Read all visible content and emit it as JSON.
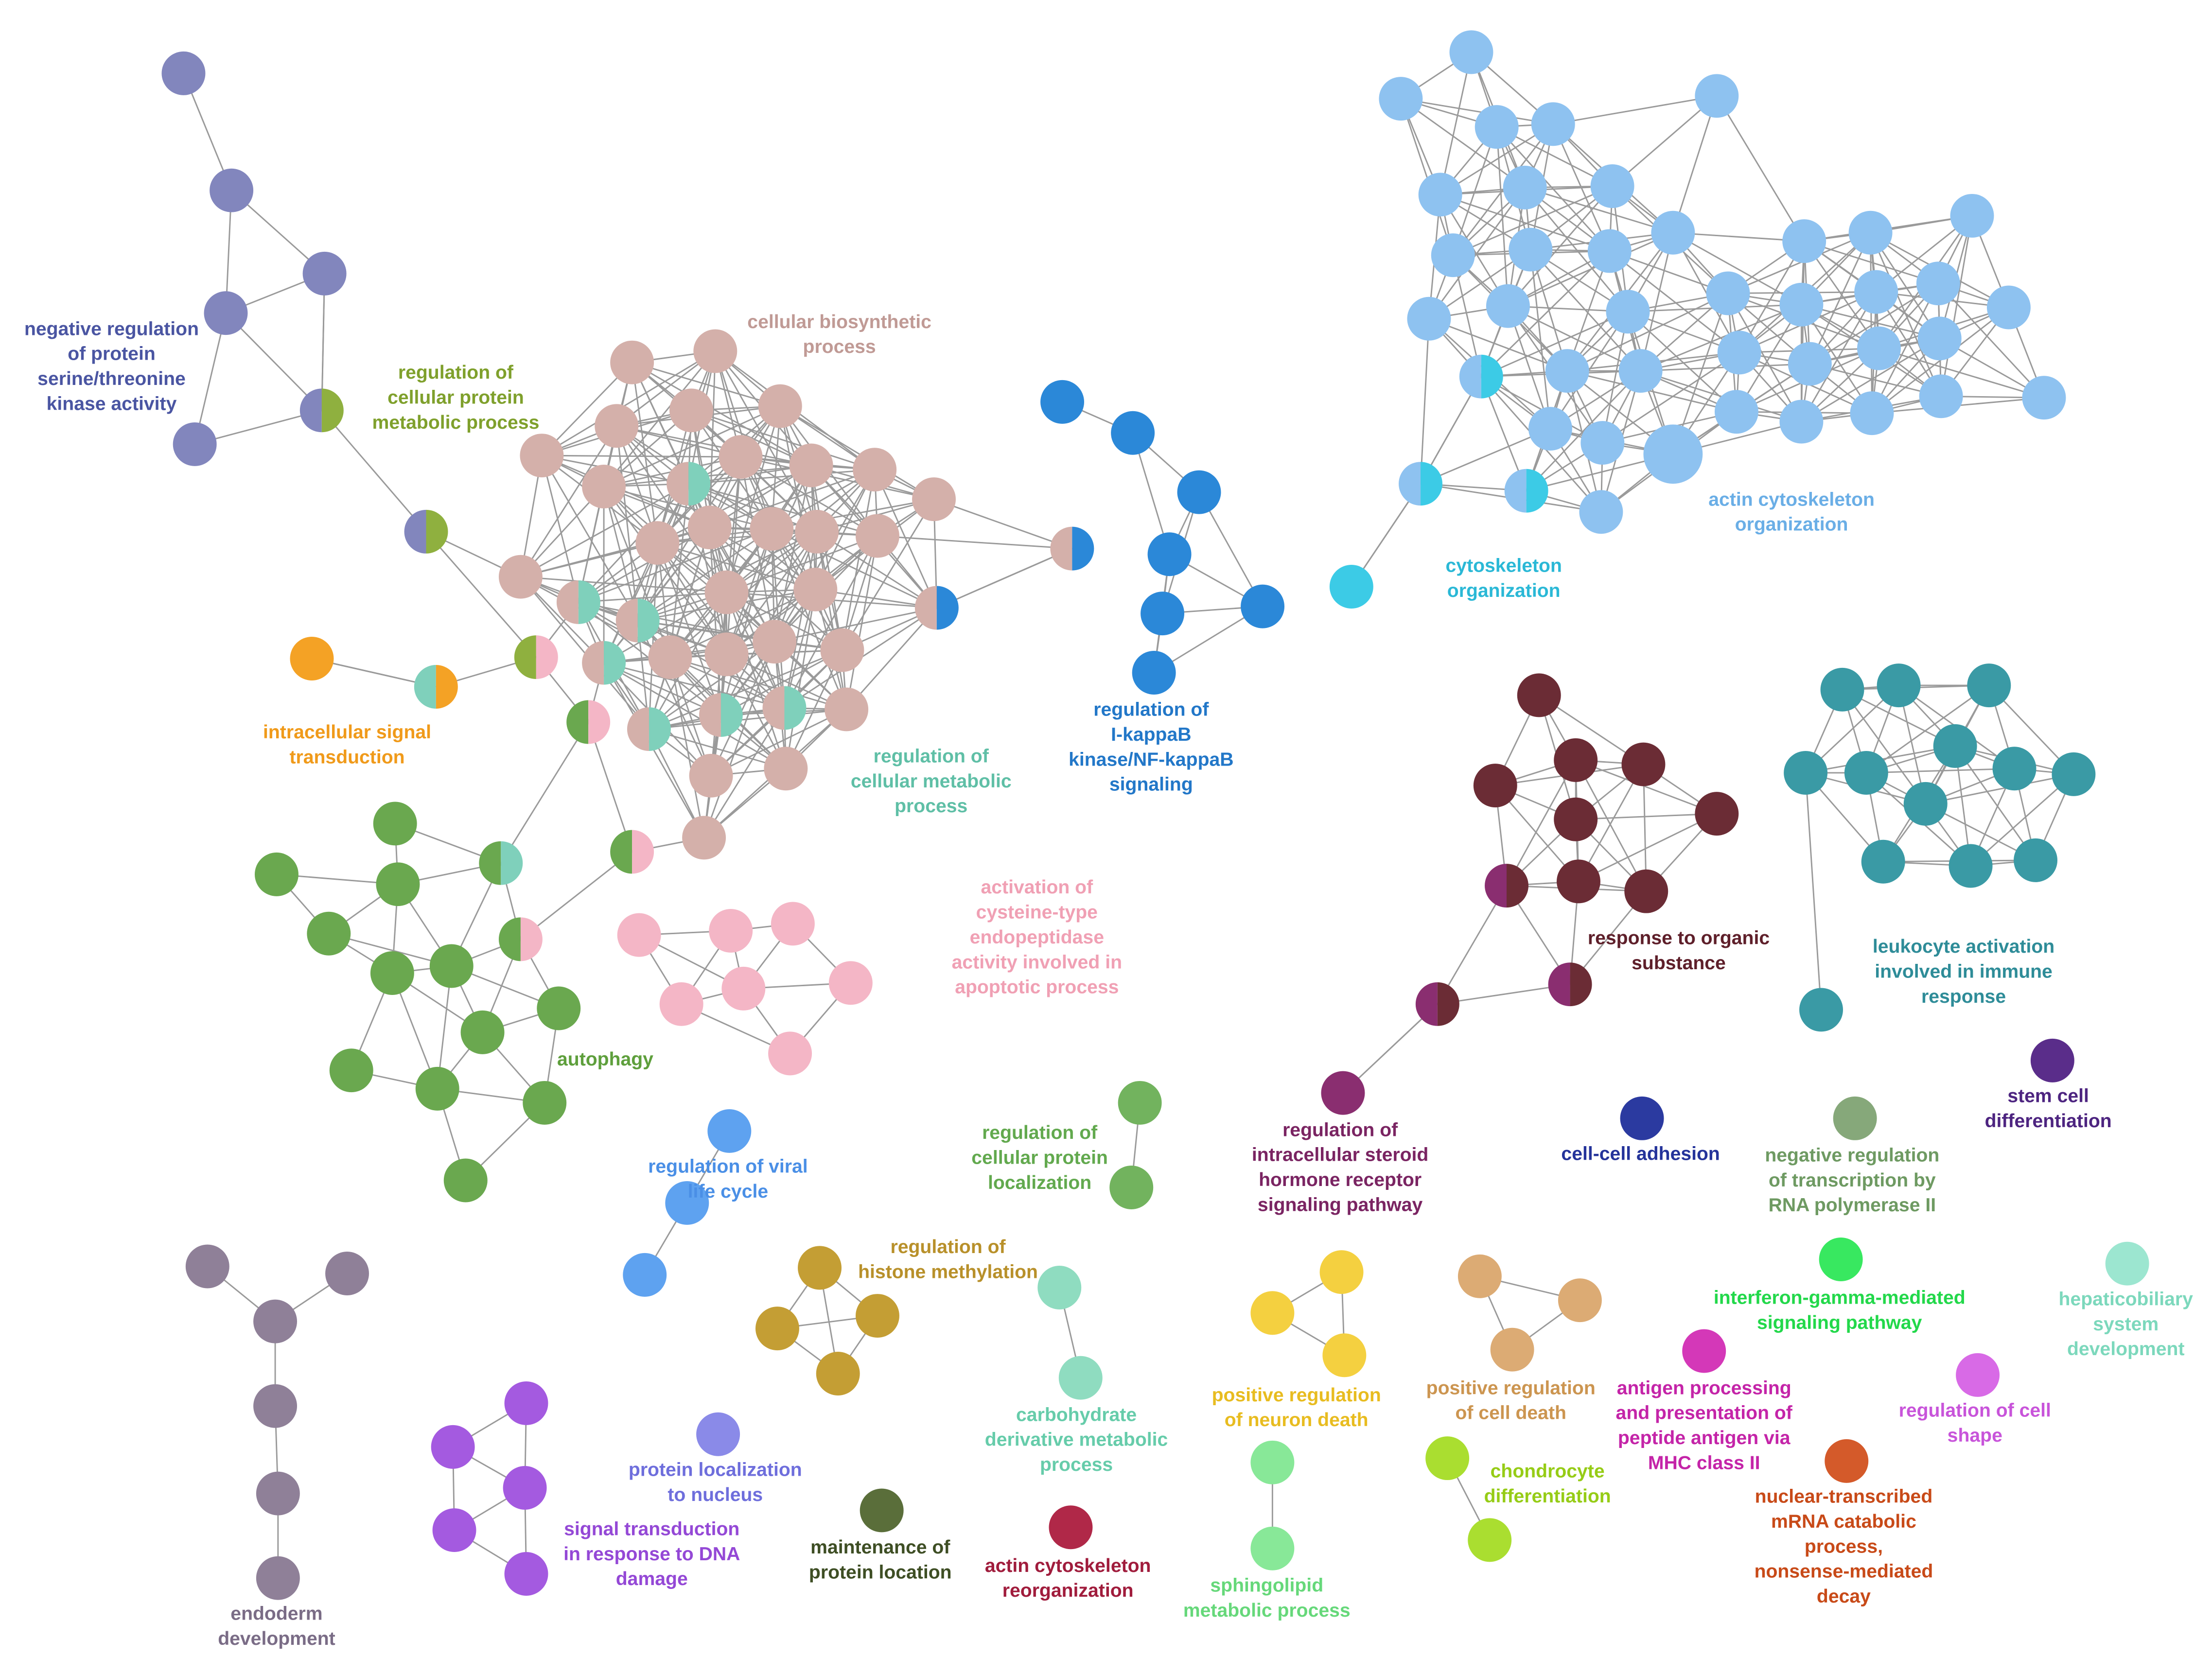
{
  "clusters": [
    {
      "label": [
        "negative regulation",
        "of protein",
        "serine/threonine",
        "kinase activity"
      ],
      "color": "#8286bd",
      "label_color": "#4a55a2"
    },
    {
      "label": [
        "regulation of",
        "cellular protein",
        "metabolic process"
      ],
      "color": "#8fb03f",
      "label_color": "#7fa02c"
    },
    {
      "label": [
        "cellular biosynthetic",
        "process"
      ],
      "color": "#d4b0aa",
      "label_color": "#c09a95"
    },
    {
      "label": [
        "intracellular signal",
        "transduction"
      ],
      "color": "#f4a225",
      "label_color": "#f09a1a"
    },
    {
      "label": [
        "regulation of",
        "cellular metabolic",
        "process"
      ],
      "color": "#7fd0bb",
      "label_color": "#5fbfa6"
    },
    {
      "label": [
        "regulation of",
        "I-kappaB",
        "kinase/NF-kappaB",
        "signaling"
      ],
      "color": "#2b88d8",
      "label_color": "#2277c8"
    },
    {
      "label": [
        "actin cytoskeleton",
        "organization"
      ],
      "color": "#8ec2f0",
      "label_color": "#6aaee6"
    },
    {
      "label": [
        "cytoskeleton",
        "organization"
      ],
      "color": "#3ccbe6",
      "label_color": "#2ab8d6"
    },
    {
      "label": [
        "autophagy"
      ],
      "color": "#6aa84f",
      "label_color": "#5e9f3c"
    },
    {
      "label": [
        "activation of",
        "cysteine-type",
        "endopeptidase",
        "activity involved in",
        "apoptotic process"
      ],
      "color": "#f4b6c6",
      "label_color": "#f0a0b4"
    },
    {
      "label": [
        "response to organic",
        "substance"
      ],
      "color": "#6b2c35",
      "label_color": "#5e1f2a"
    },
    {
      "label": [
        "leukocyte activation",
        "involved in immune",
        "response"
      ],
      "color": "#3a9aa5",
      "label_color": "#2e8c98"
    },
    {
      "label": [
        "regulation of viral",
        "life cycle"
      ],
      "color": "#5ea2f0",
      "label_color": "#4a8fe6"
    },
    {
      "label": [
        "regulation of",
        "cellular protein",
        "localization"
      ],
      "color": "#72b35e",
      "label_color": "#62a94e"
    },
    {
      "label": [
        "regulation of",
        "intracellular steroid",
        "hormone receptor",
        "signaling pathway"
      ],
      "color": "#8a2e70",
      "label_color": "#7a2462"
    },
    {
      "label": [
        "cell-cell adhesion"
      ],
      "color": "#2b3aa0",
      "label_color": "#24339a"
    },
    {
      "label": [
        "stem cell",
        "differentiation"
      ],
      "color": "#5a2d8a",
      "label_color": "#4d2480"
    },
    {
      "label": [
        "negative regulation",
        "of transcription by",
        "RNA polymerase II"
      ],
      "color": "#86a87a",
      "label_color": "#6e9a62"
    },
    {
      "label": [
        "regulation of",
        "histone methylation"
      ],
      "color": "#c49e34",
      "label_color": "#b8902a"
    },
    {
      "label": [
        "endoderm",
        "development"
      ],
      "color": "#8f8098",
      "label_color": "#7a6c86"
    },
    {
      "label": [
        "protein localization",
        "to nucleus"
      ],
      "color": "#8a8ae8",
      "label_color": "#6e6edc"
    },
    {
      "label": [
        "signal transduction",
        "in response to DNA",
        "damage"
      ],
      "color": "#a45ae0",
      "label_color": "#9448d6"
    },
    {
      "label": [
        "maintenance of",
        "protein location"
      ],
      "color": "#5a6e3a",
      "label_color": "#3e4e24"
    },
    {
      "label": [
        "actin cytoskeleton",
        "reorganization"
      ],
      "color": "#b02848",
      "label_color": "#a01c3c"
    },
    {
      "label": [
        "carbohydrate",
        "derivative metabolic",
        "process"
      ],
      "color": "#8fdcc0",
      "label_color": "#66ccaa"
    },
    {
      "label": [
        "positive regulation",
        "of neuron death"
      ],
      "color": "#f4d040",
      "label_color": "#e8bc20"
    },
    {
      "label": [
        "sphingolipid",
        "metabolic process"
      ],
      "color": "#88e898",
      "label_color": "#66d87a"
    },
    {
      "label": [
        "positive regulation",
        "of cell death"
      ],
      "color": "#dcab74",
      "label_color": "#cc9550"
    },
    {
      "label": [
        "chondrocyte",
        "differentiation"
      ],
      "color": "#aade30",
      "label_color": "#96cc16"
    },
    {
      "label": [
        "antigen processing",
        "and presentation of",
        "peptide antigen via",
        "MHC class II"
      ],
      "color": "#d438b8",
      "label_color": "#c424a8"
    },
    {
      "label": [
        "interferon-gamma-mediated",
        "signaling pathway"
      ],
      "color": "#38e860",
      "label_color": "#22d84a"
    },
    {
      "label": [
        "hepaticobiliary",
        "system",
        "development"
      ],
      "color": "#9ce6d0",
      "label_color": "#7cd8bc"
    },
    {
      "label": [
        "regulation of cell",
        "shape"
      ],
      "color": "#d86ae6",
      "label_color": "#c854da"
    },
    {
      "label": [
        "nuclear-transcribed",
        "mRNA catabolic",
        "process,",
        "nonsense-mediated",
        "decay"
      ],
      "color": "#d45a2a",
      "label_color": "#c84a18"
    }
  ]
}
